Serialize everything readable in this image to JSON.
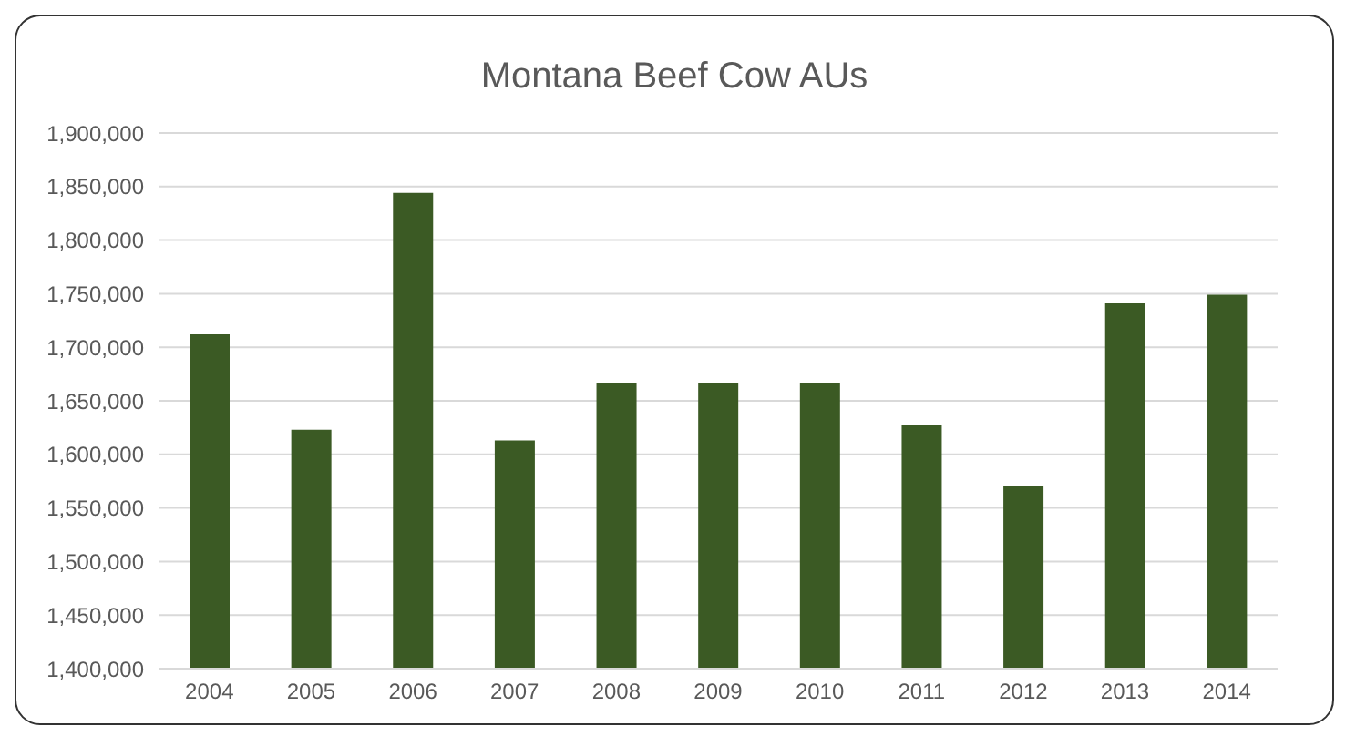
{
  "chart_data": {
    "type": "bar",
    "title": "Montana Beef Cow AUs",
    "categories": [
      "2004",
      "2005",
      "2006",
      "2007",
      "2008",
      "2009",
      "2010",
      "2011",
      "2012",
      "2013",
      "2014"
    ],
    "values": [
      1712000,
      1623000,
      1844000,
      1613000,
      1667000,
      1667000,
      1667000,
      1627000,
      1571000,
      1741000,
      1749000
    ],
    "color": "#3b5a24",
    "ylim": [
      1400000,
      1900000
    ],
    "yticks": [
      {
        "value": 1400000,
        "label": "1,400,000"
      },
      {
        "value": 1450000,
        "label": "1,450,000"
      },
      {
        "value": 1500000,
        "label": "1,500,000"
      },
      {
        "value": 1550000,
        "label": "1,550,000"
      },
      {
        "value": 1600000,
        "label": "1,600,000"
      },
      {
        "value": 1650000,
        "label": "1,650,000"
      },
      {
        "value": 1700000,
        "label": "1,700,000"
      },
      {
        "value": 1750000,
        "label": "1,750,000"
      },
      {
        "value": 1800000,
        "label": "1,800,000"
      },
      {
        "value": 1850000,
        "label": "1,850,000"
      },
      {
        "value": 1900000,
        "label": "1,900,000"
      }
    ],
    "grid": "y"
  }
}
